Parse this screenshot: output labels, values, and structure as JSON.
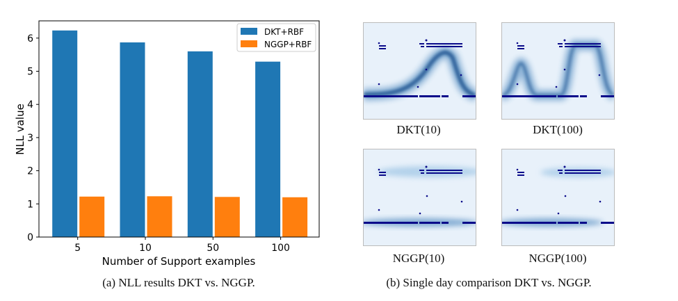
{
  "chart_data": {
    "type": "bar",
    "categories": [
      "5",
      "10",
      "50",
      "100"
    ],
    "series": [
      {
        "name": "DKT+RBF",
        "color": "#1f77b4",
        "values": [
          6.23,
          5.87,
          5.6,
          5.29
        ]
      },
      {
        "name": "NGGP+RBF",
        "color": "#ff7f0e",
        "values": [
          1.22,
          1.23,
          1.21,
          1.2
        ]
      }
    ],
    "xlabel": "Number of Support examples",
    "ylabel": "NLL value",
    "ylim": [
      0,
      6.52
    ],
    "yticks": [
      0,
      1,
      2,
      3,
      4,
      5,
      6
    ],
    "grid": false,
    "legend": "top-right"
  },
  "captions": {
    "a": "(a) NLL results DKT vs. NGGP.",
    "b": "(b) Single day comparison DKT vs. NGGP."
  },
  "panels": [
    "DKT(10)",
    "DKT(100)",
    "NGGP(10)",
    "NGGP(100)"
  ]
}
